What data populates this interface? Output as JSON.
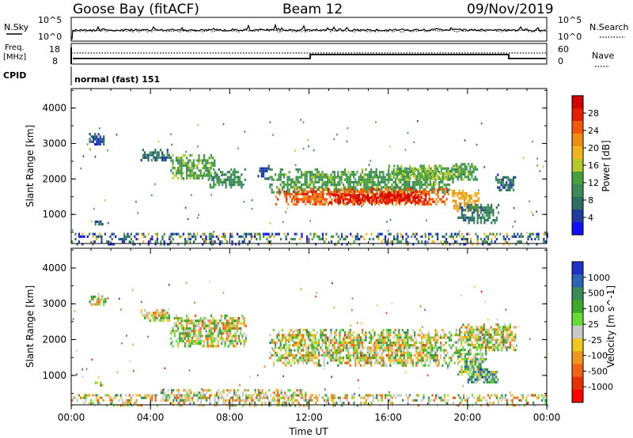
{
  "header": {
    "radar": "Goose Bay (fitACF)",
    "beam": "Beam 12",
    "date": "09/Nov/2019"
  },
  "strips": {
    "nsky_label": "N.Sky",
    "nsky_top": "10^5",
    "nsky_bottom": "10^0",
    "nsearch_label": "N.Search",
    "nsearch_top": "10^5",
    "nsearch_bottom": "10^0",
    "freq_label": "Freq.",
    "freq_unit": "[MHz]",
    "freq_top": "18",
    "freq_bottom": "8",
    "nave_label": "Nave",
    "nave_top": "60",
    "nave_bottom": "0",
    "cpid_label": "CPID",
    "cpid_value": "normal (fast) 151"
  },
  "colors": {
    "power": [
      "#1010ff",
      "#1e3ca0",
      "#2d6e64",
      "#3c8c5a",
      "#46a03c",
      "#b4c828",
      "#f0b41e",
      "#f08c14",
      "#f05a0a",
      "#e61e00",
      "#d20000"
    ],
    "velocity": [
      "#1e32c8",
      "#2c64b4",
      "#3c8c5a",
      "#3caa28",
      "#64dc32",
      "#c8c8c8",
      "#f0c81e",
      "#f0961e",
      "#f06414",
      "#e63200",
      "#ff0000"
    ]
  },
  "chart_data": [
    {
      "type": "heatmap",
      "quantity": "Power",
      "ylabel": "Slant Range [km]",
      "yticks": [
        "1000",
        "2000",
        "3000",
        "4000"
      ],
      "ylim": [
        180,
        4550
      ],
      "xlim": [
        0,
        24
      ],
      "colorbar": {
        "label": "Power [dB]",
        "ticks": [
          "4",
          "8",
          "12",
          "16",
          "20",
          "24",
          "28"
        ],
        "range": [
          0,
          32
        ]
      },
      "regions": [
        {
          "t0": 0.9,
          "t1": 1.7,
          "r0": 2950,
          "r1": 3300,
          "level": 6
        },
        {
          "t0": 1.1,
          "t1": 1.6,
          "r0": 700,
          "r1": 900,
          "level": 7
        },
        {
          "t0": 3.5,
          "t1": 5.0,
          "r0": 2500,
          "r1": 2850,
          "level": 8
        },
        {
          "t0": 5.0,
          "t1": 7.2,
          "r0": 2000,
          "r1": 2700,
          "level": 13
        },
        {
          "t0": 6.8,
          "t1": 8.8,
          "r0": 1800,
          "r1": 2300,
          "level": 11
        },
        {
          "t0": 9.4,
          "t1": 10.0,
          "r0": 2000,
          "r1": 2400,
          "level": 6
        },
        {
          "t0": 10.0,
          "t1": 19.3,
          "r0": 1600,
          "r1": 2300,
          "level": 12
        },
        {
          "t0": 10.3,
          "t1": 19.0,
          "r0": 1300,
          "r1": 1750,
          "level": 24
        },
        {
          "t0": 13.0,
          "t1": 18.0,
          "r0": 1350,
          "r1": 1650,
          "level": 29
        },
        {
          "t0": 16.0,
          "t1": 19.5,
          "r0": 2000,
          "r1": 2400,
          "level": 14
        },
        {
          "t0": 19.3,
          "t1": 20.5,
          "r0": 2000,
          "r1": 2450,
          "level": 12
        },
        {
          "t0": 19.2,
          "t1": 20.6,
          "r0": 1100,
          "r1": 1700,
          "level": 20
        },
        {
          "t0": 19.5,
          "t1": 21.6,
          "r0": 800,
          "r1": 1300,
          "level": 9
        },
        {
          "t0": 21.4,
          "t1": 22.4,
          "r0": 1700,
          "r1": 2150,
          "level": 8
        },
        {
          "t0": 0.0,
          "t1": 24.0,
          "r0": 180,
          "r1": 480,
          "level": 7
        }
      ]
    },
    {
      "type": "heatmap",
      "quantity": "Velocity",
      "ylabel": "Slant Range [km]",
      "yticks": [
        "1000",
        "2000",
        "3000",
        "4000"
      ],
      "ylim": [
        180,
        4550
      ],
      "xlim": [
        0,
        24
      ],
      "xlabel": "Time UT",
      "xticks": [
        "00:00",
        "04:00",
        "08:00",
        "12:00",
        "16:00",
        "20:00",
        "00:00"
      ],
      "xtick_values": [
        0,
        4,
        8,
        12,
        16,
        20,
        24
      ],
      "colorbar": {
        "label": "Velocity [m s^-1]",
        "ticks": [
          "1000",
          "500",
          "100",
          "25",
          "-25",
          "-100",
          "-500",
          "-1000"
        ]
      },
      "regions": [
        {
          "t0": 0.9,
          "t1": 1.7,
          "r0": 2950,
          "r1": 3300,
          "level": 5
        },
        {
          "t0": 1.1,
          "t1": 1.6,
          "r0": 700,
          "r1": 900,
          "level": 3
        },
        {
          "t0": 3.5,
          "t1": 5.0,
          "r0": 2500,
          "r1": 2850,
          "level": 5
        },
        {
          "t0": 5.0,
          "t1": 8.8,
          "r0": 1800,
          "r1": 2700,
          "level": 5
        },
        {
          "t0": 10.0,
          "t1": 19.5,
          "r0": 1300,
          "r1": 2300,
          "level": 5
        },
        {
          "t0": 19.3,
          "t1": 22.4,
          "r0": 1700,
          "r1": 2450,
          "level": 5
        },
        {
          "t0": 19.4,
          "t1": 20.9,
          "r0": 1050,
          "r1": 1700,
          "level": 4
        },
        {
          "t0": 20.0,
          "t1": 21.6,
          "r0": 800,
          "r1": 1200,
          "level": 3
        },
        {
          "t0": 0.0,
          "t1": 24.0,
          "r0": 180,
          "r1": 480,
          "level": 6
        },
        {
          "t0": 4.5,
          "t1": 11.8,
          "r0": 180,
          "r1": 620,
          "level": 6
        }
      ]
    }
  ]
}
